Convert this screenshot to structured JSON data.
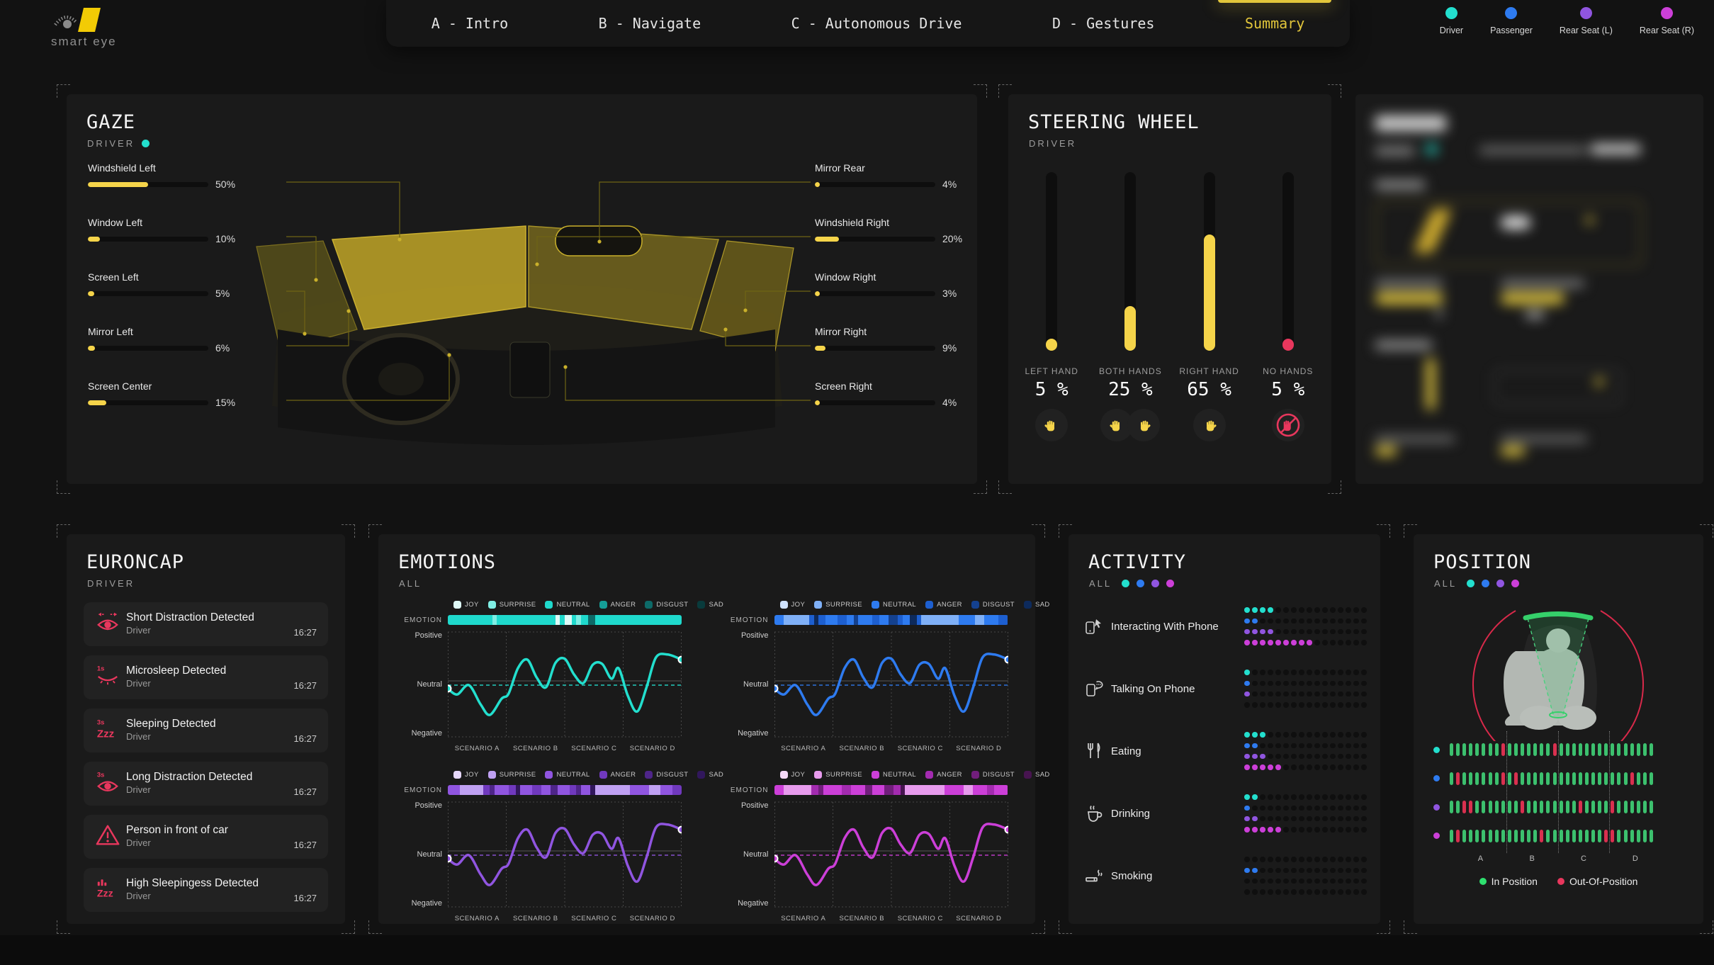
{
  "nav": {
    "brand": "smart eye",
    "tabs": [
      {
        "label": "A - Intro",
        "active": false
      },
      {
        "label": "B - Navigate",
        "active": false
      },
      {
        "label": "C - Autonomous Drive",
        "active": false
      },
      {
        "label": "D - Gestures",
        "active": false
      },
      {
        "label": "Summary",
        "active": true
      }
    ],
    "occupants": [
      {
        "label": "Driver",
        "color": "#23DFCE"
      },
      {
        "label": "Passenger",
        "color": "#2E7BF0"
      },
      {
        "label": "Rear Seat (L)",
        "color": "#9055E0"
      },
      {
        "label": "Rear Seat (R)",
        "color": "#CC3FD8"
      }
    ]
  },
  "gaze": {
    "title": "GAZE",
    "subtitle": "DRIVER",
    "subtitle_dot_color": "#23DFCE",
    "accent": "#F5D44A",
    "left_items": [
      {
        "label": "Windshield Left",
        "value": 50
      },
      {
        "label": "Window Left",
        "value": 10
      },
      {
        "label": "Screen Left",
        "value": 5
      },
      {
        "label": "Mirror Left",
        "value": 6
      },
      {
        "label": "Screen Center",
        "value": 15
      }
    ],
    "right_items": [
      {
        "label": "Mirror Rear",
        "value": 4
      },
      {
        "label": "Windshield Right",
        "value": 20
      },
      {
        "label": "Window Right",
        "value": 3
      },
      {
        "label": "Mirror Right",
        "value": 9
      },
      {
        "label": "Screen Right",
        "value": 4
      }
    ]
  },
  "steering": {
    "title": "STEERING WHEEL",
    "subtitle": "DRIVER",
    "bars": [
      {
        "label": "LEFT HAND",
        "value": 5,
        "value_text": "5 %",
        "icon": "hand-left",
        "color": "#F5D44A"
      },
      {
        "label": "BOTH HANDS",
        "value": 25,
        "value_text": "25 %",
        "icon": "hands-both",
        "color": "#F5D44A"
      },
      {
        "label": "RIGHT HAND",
        "value": 65,
        "value_text": "65 %",
        "icon": "hand-right",
        "color": "#F5D44A"
      },
      {
        "label": "NO HANDS",
        "value": 5,
        "value_text": "5 %",
        "icon": "no-hands",
        "color": "#E8375D"
      }
    ]
  },
  "euroncap": {
    "title": "EURONCAP",
    "subtitle": "DRIVER",
    "events": [
      {
        "title": "Short Distraction Detected",
        "source": "Driver",
        "time": "16:27",
        "icon": "short-distraction"
      },
      {
        "title": "Microsleep Detected",
        "source": "Driver",
        "time": "16:27",
        "icon": "microsleep"
      },
      {
        "title": "Sleeping Detected",
        "source": "Driver",
        "time": "16:27",
        "icon": "sleeping"
      },
      {
        "title": "Long Distraction Detected",
        "source": "Driver",
        "time": "16:27",
        "icon": "long-distraction"
      },
      {
        "title": "Person in front of car",
        "source": "Driver",
        "time": "16:27",
        "icon": "person-front"
      },
      {
        "title": "High Sleepingess Detected",
        "source": "Driver",
        "time": "16:27",
        "icon": "high-sleepiness"
      }
    ]
  },
  "emotions": {
    "title": "EMOTIONS",
    "subtitle": "ALL",
    "strip_label": "EMOTION",
    "legend": [
      "JOY",
      "SURPRISE",
      "NEUTRAL",
      "ANGER",
      "DISGUST",
      "SAD"
    ],
    "y_labels": [
      "Positive",
      "Neutral",
      "Negative"
    ],
    "x_labels": [
      "SCENARIO A",
      "SCENARIO B",
      "SCENARIO C",
      "SCENARIO D"
    ],
    "baseline_y": -0.1,
    "line_points": [
      [
        0,
        -0.18
      ],
      [
        4,
        -0.32
      ],
      [
        9,
        -0.1
      ],
      [
        14,
        -0.55
      ],
      [
        18,
        -0.8
      ],
      [
        23,
        -0.42
      ],
      [
        26,
        -0.3
      ],
      [
        30,
        0.3
      ],
      [
        34,
        0.5
      ],
      [
        38,
        0.08
      ],
      [
        42,
        -0.15
      ],
      [
        46,
        0.42
      ],
      [
        50,
        0.52
      ],
      [
        54,
        0.15
      ],
      [
        58,
        -0.05
      ],
      [
        62,
        0.38
      ],
      [
        66,
        0.4
      ],
      [
        70,
        0.05
      ],
      [
        73,
        0.3
      ],
      [
        77,
        -0.35
      ],
      [
        81,
        -0.72
      ],
      [
        85,
        -0.15
      ],
      [
        89,
        0.55
      ],
      [
        94,
        0.62
      ],
      [
        100,
        0.5
      ]
    ],
    "charts": [
      {
        "occupant": "Driver",
        "color": "#23DFCE",
        "shades": [
          "#DFF9F7",
          "#7FEEE4",
          "#1FD9CC",
          "#159E97",
          "#0D6A68",
          "#093B3C"
        ],
        "strip": [
          [
            2,
            19
          ],
          [
            1,
            2
          ],
          [
            2,
            25
          ],
          [
            0,
            2
          ],
          [
            2,
            2
          ],
          [
            0,
            3
          ],
          [
            2,
            2
          ],
          [
            1,
            2
          ],
          [
            2,
            3
          ],
          [
            4,
            3
          ],
          [
            2,
            37
          ]
        ]
      },
      {
        "occupant": "Passenger",
        "color": "#2E7BF0",
        "shades": [
          "#CFE2FF",
          "#7FB0F7",
          "#2E7BF0",
          "#1D5FD0",
          "#14418F",
          "#0D2A5C"
        ],
        "strip": [
          [
            2,
            4
          ],
          [
            1,
            11
          ],
          [
            3,
            2
          ],
          [
            5,
            2
          ],
          [
            3,
            3
          ],
          [
            2,
            5
          ],
          [
            3,
            4
          ],
          [
            2,
            3
          ],
          [
            4,
            2
          ],
          [
            2,
            6
          ],
          [
            3,
            3
          ],
          [
            2,
            4
          ],
          [
            4,
            4
          ],
          [
            3,
            2
          ],
          [
            2,
            3
          ],
          [
            5,
            3
          ],
          [
            3,
            2
          ],
          [
            1,
            16
          ],
          [
            2,
            7
          ],
          [
            1,
            4
          ],
          [
            2,
            6
          ],
          [
            3,
            4
          ]
        ]
      },
      {
        "occupant": "Rear Seat (L)",
        "color": "#9055E0",
        "shades": [
          "#E6D8FB",
          "#BFA0F2",
          "#9055E0",
          "#7039BE",
          "#4E2589",
          "#31175C"
        ],
        "strip": [
          [
            2,
            5
          ],
          [
            1,
            10
          ],
          [
            3,
            3
          ],
          [
            4,
            2
          ],
          [
            2,
            6
          ],
          [
            3,
            3
          ],
          [
            5,
            2
          ],
          [
            2,
            5
          ],
          [
            3,
            4
          ],
          [
            2,
            4
          ],
          [
            4,
            3
          ],
          [
            2,
            5
          ],
          [
            3,
            3
          ],
          [
            4,
            2
          ],
          [
            2,
            4
          ],
          [
            5,
            2
          ],
          [
            1,
            15
          ],
          [
            2,
            8
          ],
          [
            1,
            5
          ],
          [
            2,
            5
          ],
          [
            3,
            4
          ]
        ]
      },
      {
        "occupant": "Rear Seat (R)",
        "color": "#CC3FD8",
        "shades": [
          "#F6D9F8",
          "#E79BED",
          "#CC3FD8",
          "#A32BB0",
          "#711E7C",
          "#471450"
        ],
        "strip": [
          [
            2,
            4
          ],
          [
            1,
            12
          ],
          [
            3,
            3
          ],
          [
            4,
            2
          ],
          [
            2,
            8
          ],
          [
            3,
            4
          ],
          [
            2,
            6
          ],
          [
            4,
            3
          ],
          [
            2,
            5
          ],
          [
            4,
            4
          ],
          [
            3,
            3
          ],
          [
            5,
            2
          ],
          [
            1,
            17
          ],
          [
            2,
            8
          ],
          [
            1,
            4
          ],
          [
            2,
            6
          ],
          [
            3,
            3
          ],
          [
            2,
            6
          ]
        ]
      }
    ]
  },
  "activity": {
    "title": "ACTIVITY",
    "subtitle": "ALL",
    "dots_per_row": 16,
    "row_colors": [
      "#23DFCE",
      "#2E7BF0",
      "#9055E0",
      "#CC3FD8"
    ],
    "items": [
      {
        "label": "Interacting With Phone",
        "icon": "phone-interact",
        "counts": [
          4,
          2,
          4,
          9
        ]
      },
      {
        "label": "Talking On Phone",
        "icon": "phone-talk",
        "counts": [
          1,
          1,
          1,
          0
        ]
      },
      {
        "label": "Eating",
        "icon": "eating",
        "counts": [
          3,
          2,
          3,
          5
        ]
      },
      {
        "label": "Drinking",
        "icon": "drinking",
        "counts": [
          2,
          1,
          2,
          5
        ]
      },
      {
        "label": "Smoking",
        "icon": "smoking",
        "counts": [
          0,
          2,
          0,
          0
        ]
      }
    ]
  },
  "position": {
    "title": "POSITION",
    "subtitle": "ALL",
    "pills_per_row": 32,
    "row_colors": [
      "#23DFCE",
      "#2E7BF0",
      "#9055E0",
      "#CC3FD8"
    ],
    "out_indices": [
      [
        8,
        16
      ],
      [
        1,
        8,
        10,
        28
      ],
      [
        2,
        3,
        11,
        20,
        25
      ],
      [
        1,
        14,
        24,
        25
      ]
    ],
    "x_labels": [
      "A",
      "B",
      "C",
      "D"
    ],
    "in_color": "#3CC06E",
    "out_color": "#D9304F",
    "legend": [
      {
        "label": "In Position",
        "color": "#2EE06F"
      },
      {
        "label": "Out-Of-Position",
        "color": "#E8375D"
      }
    ]
  }
}
